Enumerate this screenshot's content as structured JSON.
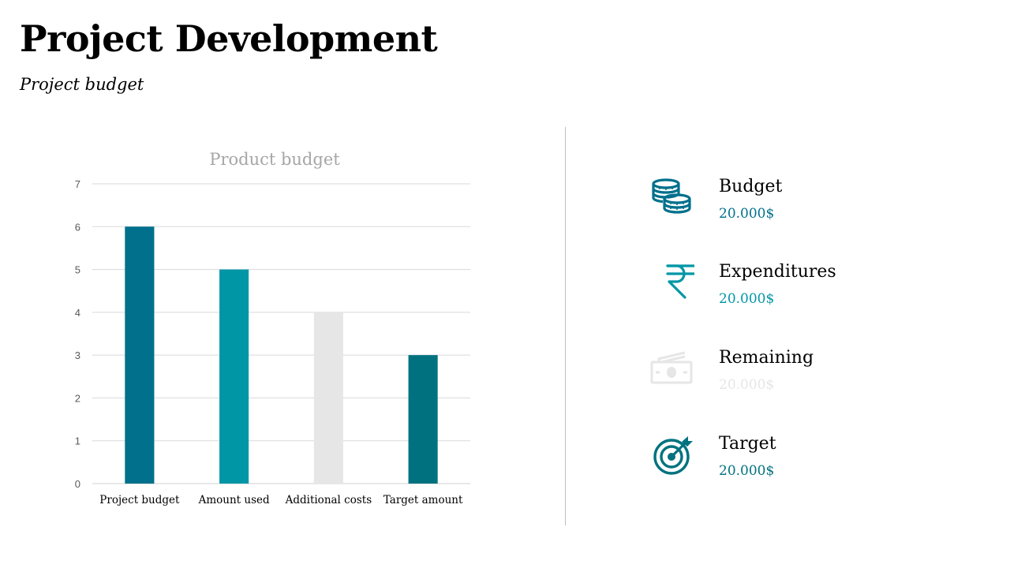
{
  "header": {
    "title": "Project Development",
    "subtitle": "Project budget"
  },
  "chart_data": {
    "type": "bar",
    "title": "Product budget",
    "categories": [
      "Project budget",
      "Amount used",
      "Additional costs",
      "Target amount"
    ],
    "values": [
      6,
      5,
      4,
      3
    ],
    "colors": [
      "#00708C",
      "#0096A6",
      "#E6E6E6",
      "#00727F"
    ],
    "ylim": [
      0,
      7
    ],
    "yticks": [
      0,
      1,
      2,
      3,
      4,
      5,
      6,
      7
    ],
    "grid": true,
    "legend": "none"
  },
  "kpis": [
    {
      "label": "Budget",
      "value": "20.000$",
      "icon": "coins-icon",
      "color": "#00708C"
    },
    {
      "label": "Expenditures",
      "value": "20.000$",
      "icon": "rupee-icon",
      "color": "#0096A6"
    },
    {
      "label": "Remaining",
      "value": "20.000$",
      "icon": "banknotes-icon",
      "color": "#E6E6E6"
    },
    {
      "label": "Target",
      "value": "20.000$",
      "icon": "target-icon",
      "color": "#00727F"
    }
  ]
}
